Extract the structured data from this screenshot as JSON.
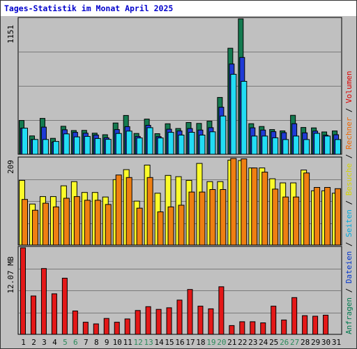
{
  "title": "Tages-Statistik im Monat April 2025",
  "legend": [
    {
      "label": "Anfragen",
      "color": "#007a4f"
    },
    {
      "sep": " / "
    },
    {
      "label": "Dateien",
      "color": "#0033cc"
    },
    {
      "sep": " / "
    },
    {
      "label": "Seiten",
      "color": "#00aadd"
    },
    {
      "sep": " / "
    },
    {
      "label": "Besuche",
      "color": "#d4d400"
    },
    {
      "sep": " / "
    },
    {
      "label": "Rechner",
      "color": "#ee6600"
    },
    {
      "sep": " / "
    },
    {
      "label": "Volumen",
      "color": "#dd0000"
    }
  ],
  "colors": {
    "hits": "#147a50",
    "files": "#1f3bd6",
    "pages": "#22dcf5",
    "visits": "#fbfb2a",
    "sites": "#ef7f12",
    "volume": "#e41818",
    "weekend_label": "#2a8a5a",
    "weekday_label": "#000000",
    "background": "#c0c0c0"
  },
  "chart_data": [
    {
      "type": "bar",
      "title": "Tages-Statistik im Monat April 2025",
      "ylabel": "1151",
      "ymax": 1151,
      "categories": [
        "1",
        "2",
        "3",
        "4",
        "5",
        "6",
        "7",
        "8",
        "9",
        "10",
        "11",
        "12",
        "13",
        "14",
        "15",
        "16",
        "17",
        "18",
        "19",
        "20",
        "21",
        "22",
        "23",
        "24",
        "25",
        "26",
        "27",
        "28",
        "29",
        "30",
        "31"
      ],
      "weekend": [
        5,
        6,
        12,
        13,
        19,
        20,
        26,
        27
      ],
      "series": [
        {
          "name": "Anfragen",
          "values": [
            287,
            156,
            305,
            135,
            238,
            202,
            203,
            179,
            166,
            266,
            330,
            177,
            299,
            175,
            259,
            219,
            270,
            262,
            281,
            483,
            901,
            1151,
            260,
            236,
            210,
            199,
            331,
            228,
            224,
            190,
            198
          ]
        },
        {
          "name": "Dateien",
          "values": [
            222,
            126,
            231,
            104,
            208,
            186,
            179,
            164,
            140,
            210,
            235,
            152,
            246,
            150,
            213,
            198,
            219,
            206,
            226,
            400,
            767,
            823,
            225,
            206,
            192,
            184,
            260,
            182,
            197,
            162,
            166
          ]
        },
        {
          "name": "Seiten",
          "values": [
            222,
            126,
            126,
            109,
            173,
            148,
            152,
            134,
            127,
            177,
            197,
            139,
            226,
            139,
            186,
            163,
            187,
            163,
            191,
            325,
            680,
            620,
            155,
            155,
            140,
            125,
            155,
            125,
            178,
            155,
            125
          ]
        }
      ]
    },
    {
      "type": "bar",
      "ylabel": "209",
      "ymax": 209,
      "categories": [
        "1",
        "2",
        "3",
        "4",
        "5",
        "6",
        "7",
        "8",
        "9",
        "10",
        "11",
        "12",
        "13",
        "14",
        "15",
        "16",
        "17",
        "18",
        "19",
        "20",
        "21",
        "22",
        "23",
        "24",
        "25",
        "26",
        "27",
        "28",
        "29",
        "30",
        "31"
      ],
      "series": [
        {
          "name": "Besuche",
          "values": [
            156,
            99,
            117,
            117,
            143,
            153,
            127,
            127,
            116,
            158,
            182,
            106,
            193,
            125,
            168,
            165,
            156,
            197,
            153,
            153,
            205,
            204,
            186,
            186,
            160,
            150,
            150,
            181,
            131,
            131,
            125
          ]
        },
        {
          "name": "Rechner",
          "values": [
            110,
            84,
            101,
            92,
            113,
            117,
            108,
            108,
            98,
            169,
            163,
            89,
            163,
            80,
            92,
            96,
            128,
            128,
            134,
            134,
            209,
            208,
            186,
            176,
            135,
            116,
            116,
            174,
            139,
            139,
            136
          ]
        }
      ]
    },
    {
      "type": "bar",
      "ylabel": "12.07 MB",
      "ymax": 12.07,
      "unit": "MB",
      "categories": [
        "1",
        "2",
        "3",
        "4",
        "5",
        "6",
        "7",
        "8",
        "9",
        "10",
        "11",
        "12",
        "13",
        "14",
        "15",
        "16",
        "17",
        "18",
        "19",
        "20",
        "21",
        "22",
        "23",
        "24",
        "25",
        "26",
        "27",
        "28",
        "29",
        "30",
        "31"
      ],
      "series": [
        {
          "name": "Volumen",
          "values": [
            12.07,
            5.35,
            9.18,
            5.66,
            7.84,
            3.26,
            1.69,
            1.46,
            2.22,
            1.69,
            2.15,
            3.33,
            3.86,
            3.48,
            3.71,
            4.78,
            6.26,
            3.93,
            3.56,
            6.64,
            1.23,
            1.76,
            1.76,
            1.61,
            3.93,
            2.01,
            5.13,
            2.61,
            2.53,
            2.68,
            0
          ]
        }
      ]
    }
  ]
}
